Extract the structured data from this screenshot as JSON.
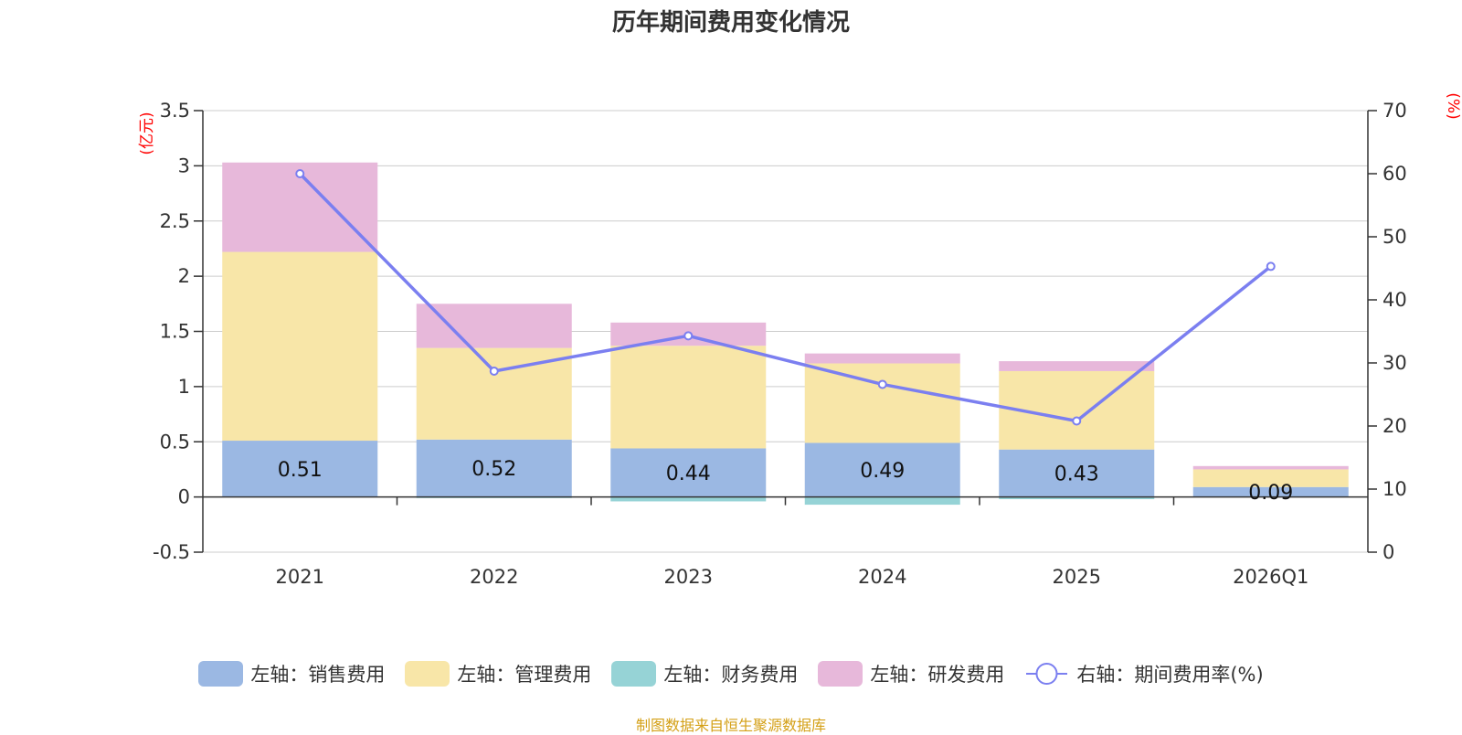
{
  "chart_data": {
    "type": "bar",
    "stacked": true,
    "title": "历年期间费用变化情况",
    "categories": [
      "2021",
      "2022",
      "2023",
      "2024",
      "2025",
      "2026Q1"
    ],
    "left_axis": {
      "unit": "(亿元)",
      "ylim": [
        -0.5,
        3.5
      ],
      "ticks": [
        3.5,
        3,
        2.5,
        2,
        1.5,
        1,
        0.5,
        0,
        -0.5
      ],
      "tick_labels": [
        "3.5",
        "3",
        "2.5",
        "2",
        "1.5",
        "1",
        "0.5",
        "0",
        "-0.5"
      ]
    },
    "right_axis": {
      "unit": "(%)",
      "ylim": [
        0,
        70
      ],
      "ticks": [
        70,
        60,
        50,
        40,
        30,
        20,
        10,
        0
      ],
      "tick_labels": [
        "70",
        "60",
        "50",
        "40",
        "30",
        "20",
        "10",
        "0"
      ]
    },
    "series": [
      {
        "name": "左轴：销售费用",
        "axis": "left",
        "type": "bar",
        "color": "#9bb8e3",
        "values": [
          0.51,
          0.52,
          0.44,
          0.49,
          0.43,
          0.09
        ],
        "labels": [
          "0.51",
          "0.52",
          "0.44",
          "0.49",
          "0.43",
          "0.09"
        ]
      },
      {
        "name": "左轴：管理费用",
        "axis": "left",
        "type": "bar",
        "color": "#f8e6a8",
        "values": [
          1.71,
          0.83,
          0.93,
          0.72,
          0.71,
          0.16
        ]
      },
      {
        "name": "左轴：财务费用",
        "axis": "left",
        "type": "bar",
        "color": "#96d3d6",
        "values": [
          0.0,
          -0.01,
          -0.04,
          -0.07,
          -0.02,
          0.0
        ]
      },
      {
        "name": "左轴：研发费用",
        "axis": "left",
        "type": "bar",
        "color": "#e7b8da",
        "values": [
          0.81,
          0.4,
          0.21,
          0.09,
          0.09,
          0.03
        ]
      },
      {
        "name": "右轴：期间费用率(%)",
        "axis": "right",
        "type": "line",
        "color": "#7b7ff0",
        "values": [
          60.0,
          28.7,
          34.3,
          26.6,
          20.8,
          45.3
        ]
      }
    ]
  },
  "source": "制图数据来自恒生聚源数据库"
}
